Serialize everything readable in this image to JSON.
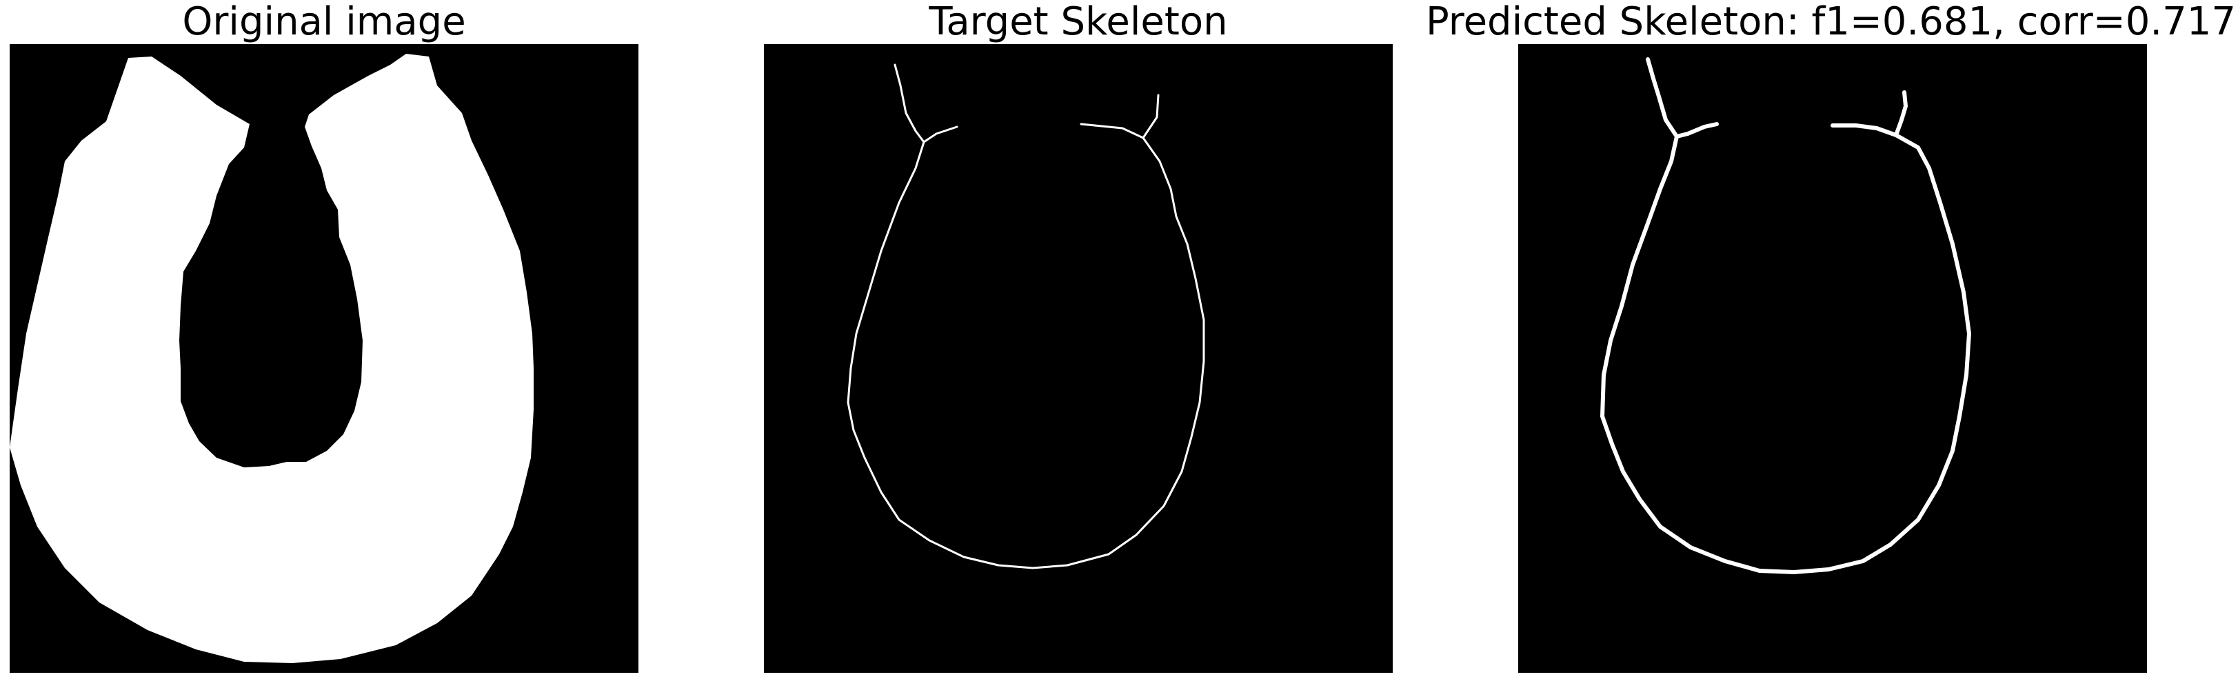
{
  "panels": [
    {
      "title": "Original image"
    },
    {
      "title": "Target Skeleton"
    },
    {
      "title": "Predicted Skeleton: f1=0.681, corr=0.717"
    }
  ],
  "colors": {
    "background": "#000000",
    "foreground": "#ffffff"
  }
}
